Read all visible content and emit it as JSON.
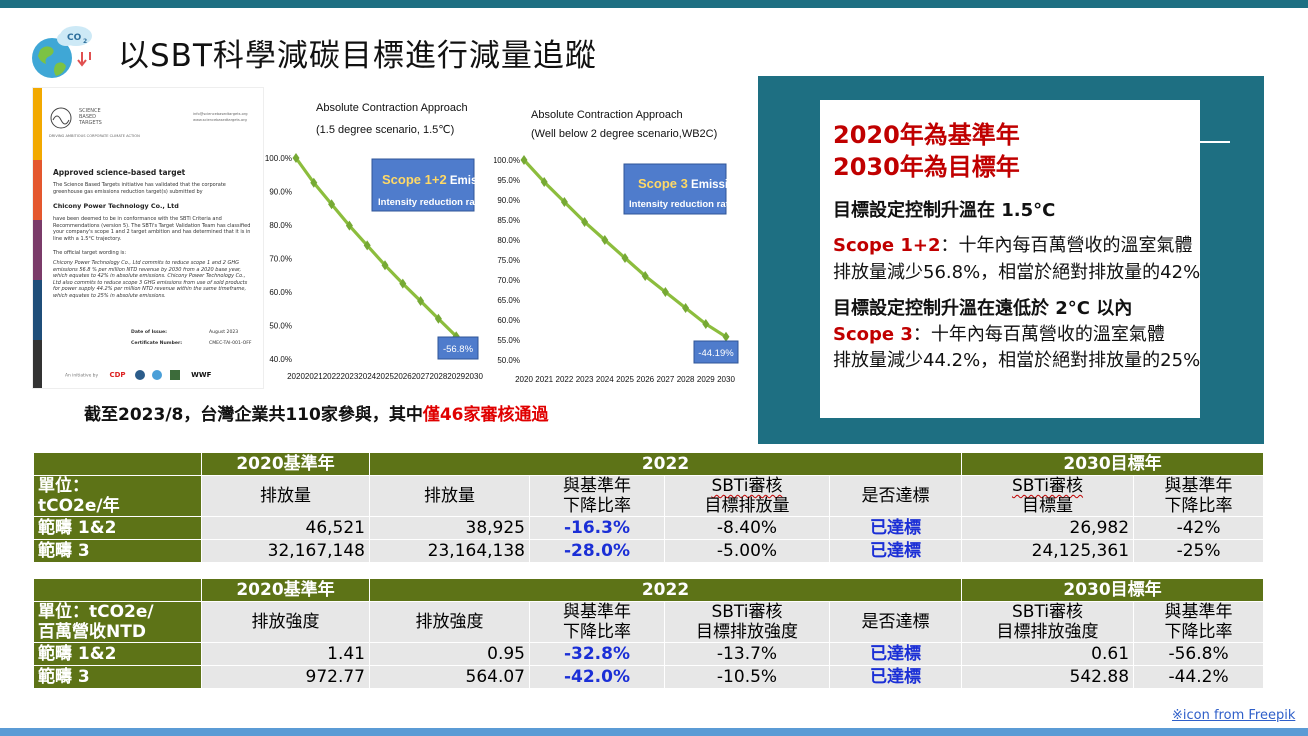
{
  "title": "以SBT科學減碳目標進行減量追蹤",
  "certificate": {
    "brand": [
      "SCIENCE",
      "BASED",
      "TARGETS"
    ],
    "tagline": "DRIVING AMBITIOUS CORPORATE CLIMATE ACTION",
    "contact": [
      "info@sciencebasedtargets.org",
      "www.sciencebasedtargets.org"
    ],
    "heading": "Approved science-based target",
    "intro": "The Science Based Targets initiative has validated that the corporate greenhouse gas emissions reduction target(s) submitted by",
    "company": "Chicony Power Technology Co., Ltd",
    "body": "have been deemed to be in conformance with the SBTi Criteria and Recommendations (version 5). The SBTi's Target Validation Team has classified your company's scope 1 and 2 target ambition and has determined that it is in line with a 1.5°C trajectory.",
    "wording_label": "The official target wording is:",
    "wording": "Chicony Power Technology Co., Ltd commits to reduce scope 1 and 2 GHG emissions 56.8 % per million NTD revenue by 2030 from a 2020 base year, which equates to 42% in absolute emissions. Chicony Power Technology Co., Ltd also commits to reduce scope 3 GHG emissions from use of sold products for power supply 44.2% per million NTD revenue within the same timeframe, which equates to 25% in absolute emissions.",
    "date_label": "Date of Issue:",
    "date_value": "August 2023",
    "cert_label": "Certificate Number:",
    "cert_value": "CMEC-TAI-001-OFF",
    "initiative": "An initiative by",
    "partners": [
      "CDP",
      "WWF"
    ],
    "stripe_colors": [
      "#f2a900",
      "#e4572e",
      "#7a3b69",
      "#1f4e79",
      "#333333"
    ]
  },
  "charts": [
    {
      "title_line1": "Absolute Contraction Approach",
      "title_line2": "(1.5 degree scenario, 1.5℃)",
      "callout_bold": "Scope 1+2",
      "callout_rest": " Emission",
      "callout_line2": "Intensity reduction rate",
      "end_label": "-56.8%"
    },
    {
      "title_line1": "Absolute Contraction Approach",
      "title_line2": "(Well below 2 degree scenario,WB2C)",
      "callout_bold": "Scope 3",
      "callout_rest": " Emission",
      "callout_line2": "Intensity reduction rate",
      "end_label": "-44.19%"
    }
  ],
  "chart_data": [
    {
      "type": "line",
      "x": [
        2020,
        2021,
        2022,
        2023,
        2024,
        2025,
        2026,
        2027,
        2028,
        2029,
        2030
      ],
      "series": [
        {
          "values": [
            100.0,
            92.6,
            86.2,
            79.8,
            73.9,
            68.0,
            62.5,
            57.3,
            52.0,
            46.8,
            43.2
          ]
        }
      ],
      "yticks": [
        "100.0%",
        "90.0%",
        "80.0%",
        "70.0%",
        "60.0%",
        "50.0%",
        "40.0%"
      ],
      "ylim": [
        40,
        100
      ],
      "line_color": "#8cbd3d",
      "marker_color": "#76a934"
    },
    {
      "type": "line",
      "x": [
        2020,
        2021,
        2022,
        2023,
        2024,
        2025,
        2026,
        2027,
        2028,
        2029,
        2030
      ],
      "series": [
        {
          "values": [
            100.0,
            94.5,
            89.5,
            84.5,
            80.0,
            75.5,
            71.0,
            67.0,
            63.0,
            59.0,
            55.8
          ]
        }
      ],
      "yticks": [
        "100.0%",
        "95.0%",
        "90.0%",
        "85.0%",
        "80.0%",
        "75.0%",
        "70.0%",
        "65.0%",
        "60.0%",
        "55.0%",
        "50.0%"
      ],
      "ylim": [
        50,
        100
      ],
      "line_color": "#8cbd3d",
      "marker_color": "#76a934"
    }
  ],
  "note": {
    "prefix": "截至2023/8，台灣企業共110家參與，其中",
    "highlight": "僅46家審核通過"
  },
  "panel": {
    "base_year": "2020年為基準年",
    "target_year": "2030年為目標年",
    "target1": "目標設定控制升溫在 1.5°C",
    "scope12_label": "Scope 1+2",
    "scope12_line1": "：十年內每百萬營收的溫室氣體",
    "scope12_line2": "排放量減少56.8%，相當於絕對排放量的42%",
    "target2": "目標設定控制升溫在遠低於 2°C 以內",
    "scope3_label": "Scope 3",
    "scope3_line1": "：十年內每百萬營收的溫室氣體",
    "scope3_line2": "排放量減少44.2%，相當於絕對排放量的25%"
  },
  "table1": {
    "header": {
      "c2020": "2020基準年",
      "c2022": "2022",
      "c2030": "2030目標年"
    },
    "sub": {
      "unit1": "單位：",
      "unit2": "tCO2e/年",
      "col1": "排放量",
      "col2": "排放量",
      "col3a": "與基準年",
      "col3b": "下降比率",
      "col4a": "SBTi審核",
      "col4b": "目標排放量",
      "col5": "是否達標",
      "col6a": "SBTi審核",
      "col6b": "目標量",
      "col7a": "與基準年",
      "col7b": "下降比率"
    },
    "rows": [
      [
        "範疇 1&2",
        "46,521",
        "38,925",
        "-16.3%",
        "-8.40%",
        "已達標",
        "26,982",
        "-42%"
      ],
      [
        "範疇 3",
        "32,167,148",
        "23,164,138",
        "-28.0%",
        "-5.00%",
        "已達標",
        "24,125,361",
        "-25%"
      ]
    ]
  },
  "table2": {
    "header": {
      "c2020": "2020基準年",
      "c2022": "2022",
      "c2030": "2030目標年"
    },
    "sub": {
      "unit1": "單位：tCO2e/",
      "unit2": "百萬營收NTD",
      "col1": "排放強度",
      "col2": "排放強度",
      "col3a": "與基準年",
      "col3b": "下降比率",
      "col4a": "SBTi審核",
      "col4b": "目標排放強度",
      "col5": "是否達標",
      "col6a": "SBTi審核",
      "col6b": "目標排放強度",
      "col7a": "與基準年",
      "col7b": "下降比率"
    },
    "rows": [
      [
        "範疇 1&2",
        "1.41",
        "0.95",
        "-32.8%",
        "-13.7%",
        "已達標",
        "0.61",
        "-56.8%"
      ],
      [
        "範疇 3",
        "972.77",
        "564.07",
        "-42.0%",
        "-10.5%",
        "已達標",
        "542.88",
        "-44.2%"
      ]
    ]
  },
  "credit": "※icon from Freepik",
  "icon_names": {
    "title_icon": "earth-co2-icon"
  }
}
